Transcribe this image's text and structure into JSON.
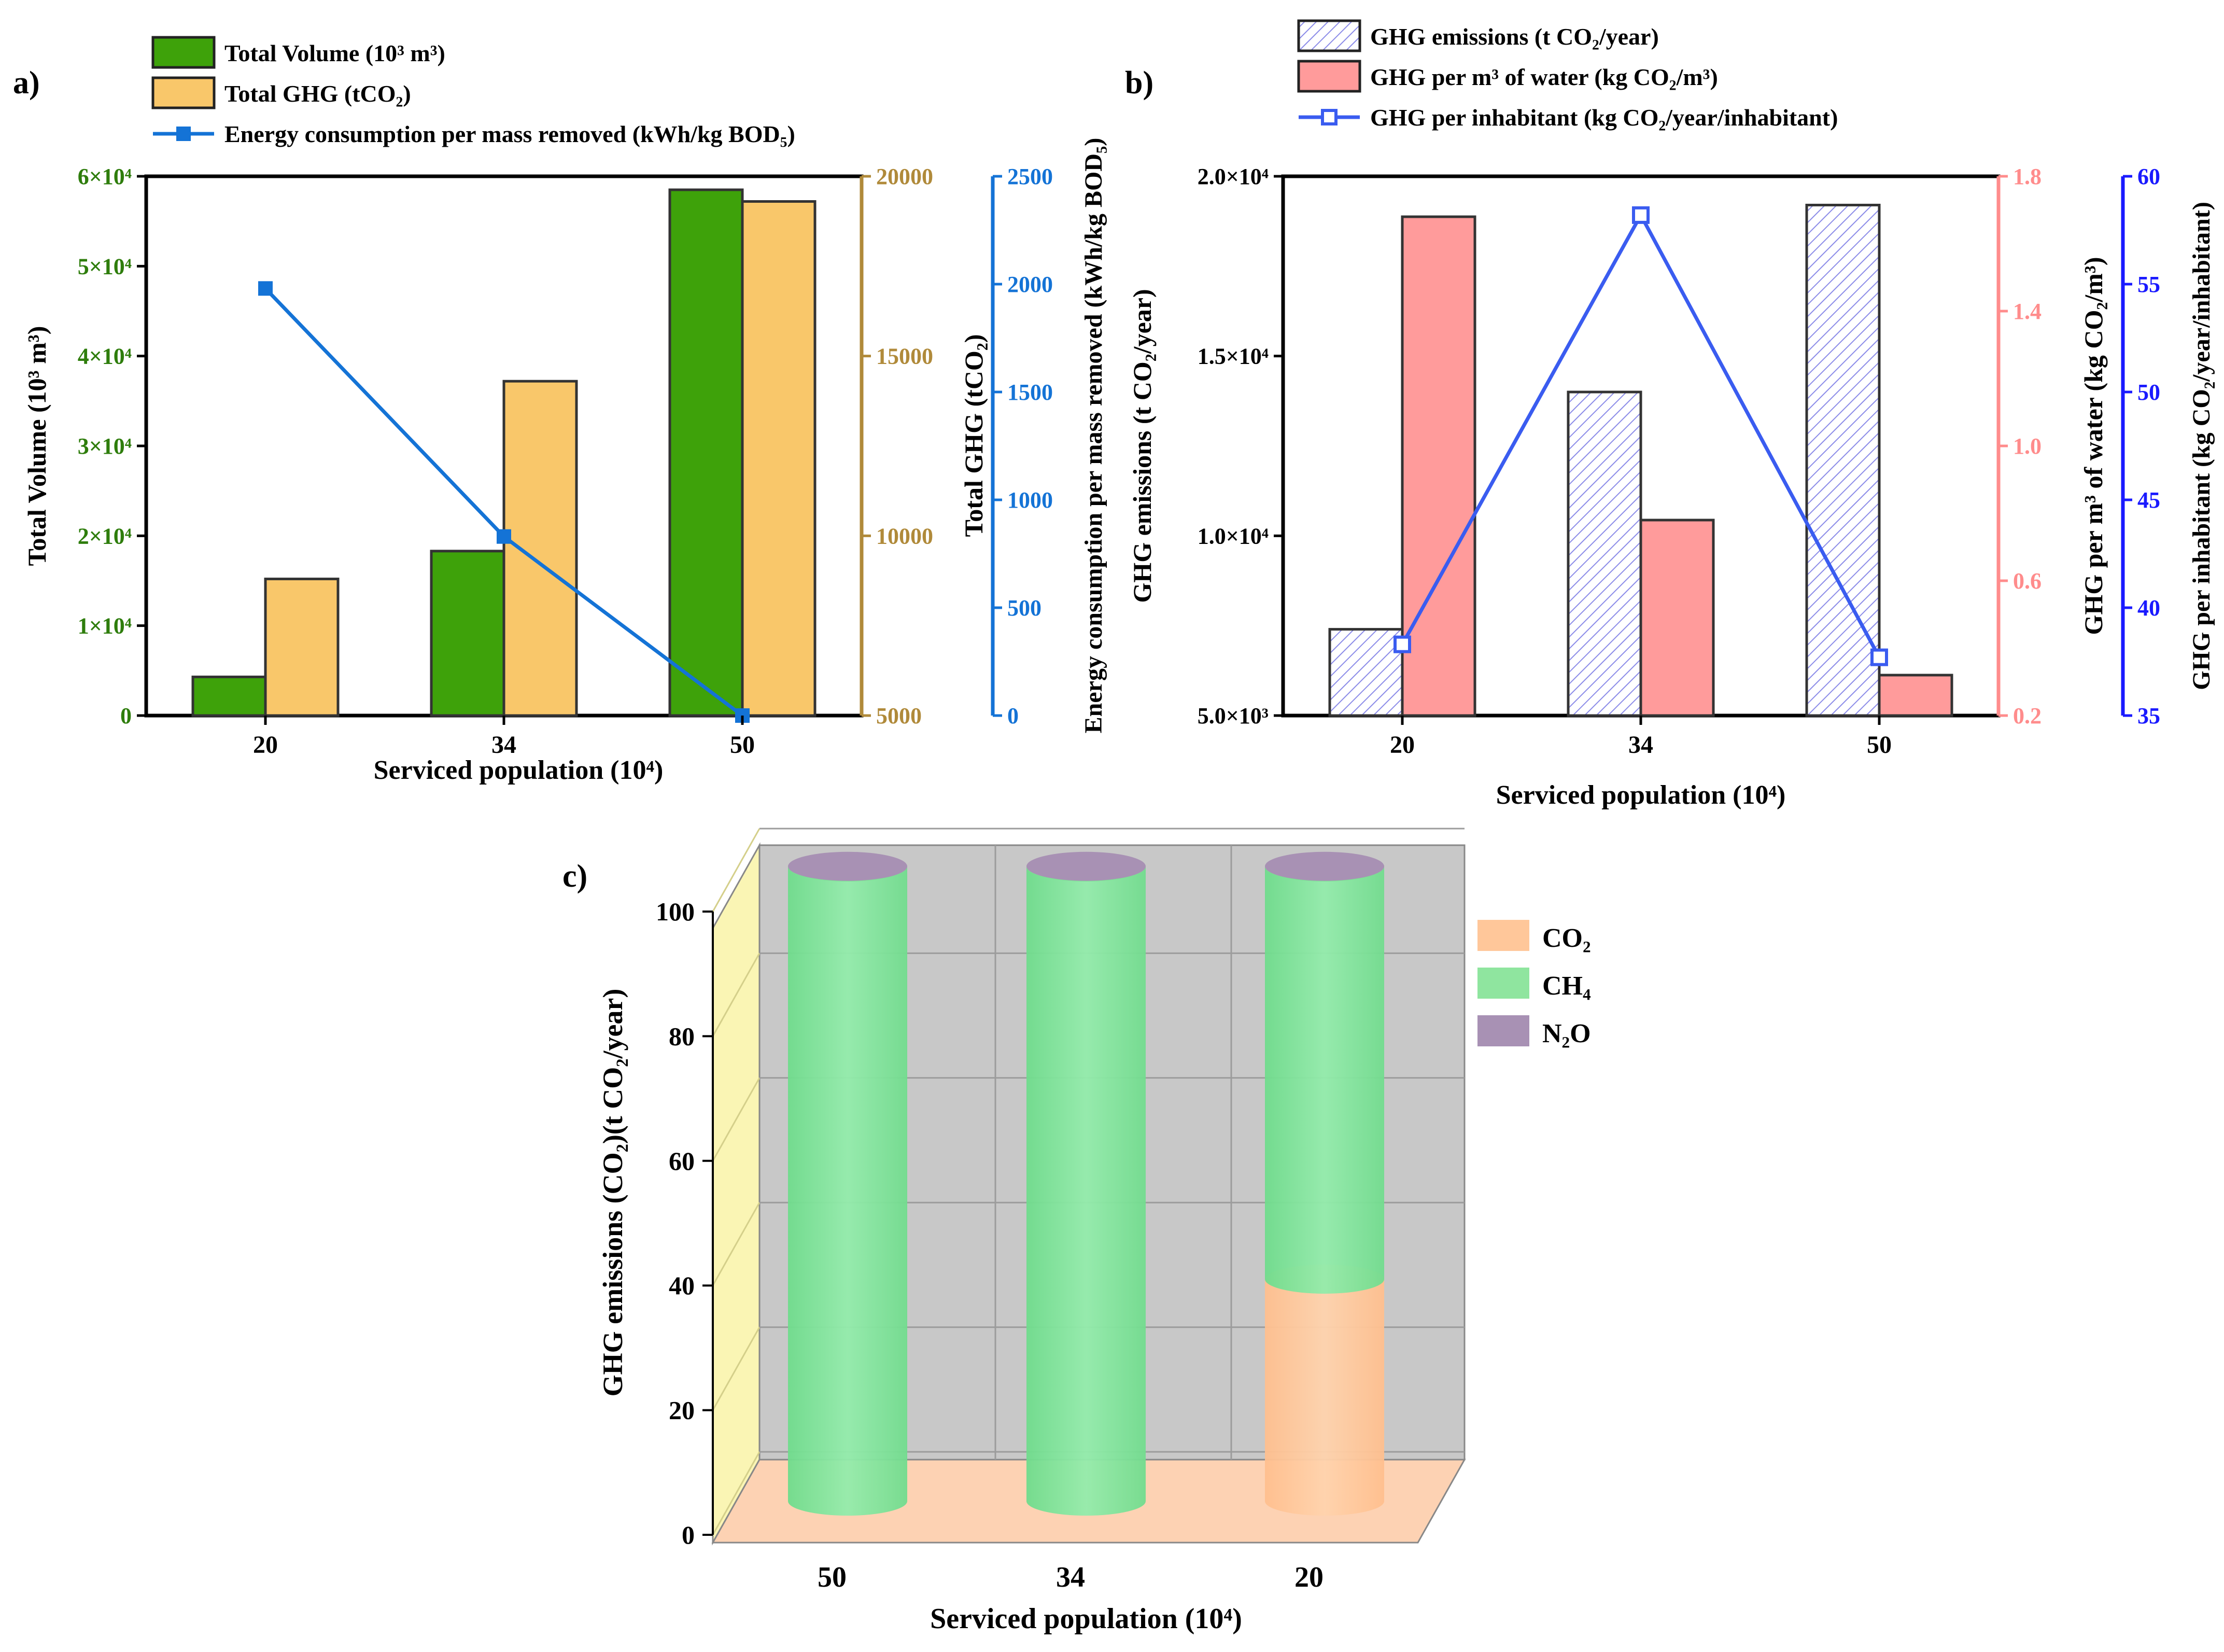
{
  "chart_data": [
    {
      "panel": "a)",
      "type": "bar",
      "xlabel": "Serviced population (10⁴)",
      "categories": [
        "20",
        "34",
        "50"
      ],
      "series": [
        {
          "name": "Total Volume (10³ m³)",
          "kind": "bar",
          "axis": "left",
          "color": "#3ea20a",
          "values": [
            4300,
            18300,
            58500
          ]
        },
        {
          "name": "Total GHG (tCO₂)",
          "kind": "bar",
          "axis": "right1",
          "color": "#f9c76a",
          "values": [
            8800,
            14300,
            19300
          ]
        },
        {
          "name": "Energy consumption per  mass removed (kWh/kg BOD₅)",
          "kind": "line",
          "axis": "right2",
          "color": "#1473d6",
          "values": [
            1980,
            830,
            0
          ]
        }
      ],
      "axes": {
        "left": {
          "label": "Total Volume (10³ m³)",
          "ylim": [
            0,
            60000
          ],
          "ticks": [
            "0",
            "1×10⁴",
            "2×10⁴",
            "3×10⁴",
            "4×10⁴",
            "5×10⁴",
            "6×10⁴"
          ],
          "color": "#2e7d0c"
        },
        "right1": {
          "label": "Total GHG (tCO₂)",
          "ylim": [
            5000,
            20000
          ],
          "ticks": [
            "5000",
            "10000",
            "15000",
            "20000"
          ],
          "color": "#b08a3a"
        },
        "right2": {
          "label": "Energy consumption per  mass removed (kWh/kg BOD₅)",
          "ylim": [
            0,
            2500
          ],
          "ticks": [
            "0",
            "500",
            "1000",
            "1500",
            "2000",
            "2500"
          ],
          "color": "#1473d6"
        }
      }
    },
    {
      "panel": "b)",
      "type": "bar",
      "xlabel": "Serviced population (10⁴)",
      "categories": [
        "20",
        "34",
        "50"
      ],
      "series": [
        {
          "name": "GHG emissions (t CO₂/year)",
          "kind": "bar",
          "axis": "left",
          "color": "#8c8ce8",
          "values": [
            7400,
            14000,
            19200
          ]
        },
        {
          "name": "GHG per m³ of water (kg CO₂/m³)",
          "kind": "bar",
          "axis": "right1",
          "color": "#ff9b9b",
          "values": [
            1.68,
            0.78,
            0.32
          ]
        },
        {
          "name": "GHG per inhabitant (kg CO₂/year/inhabitant)",
          "kind": "line",
          "axis": "right2",
          "color": "#3a5cf0",
          "values": [
            38.3,
            58.2,
            37.7
          ]
        }
      ],
      "axes": {
        "left": {
          "label": "GHG emissions (t CO₂/year)",
          "ylim": [
            5000,
            20000
          ],
          "ticks": [
            "5.0×10³",
            "1.0×10⁴",
            "1.5×10⁴",
            "2.0×10⁴"
          ],
          "color": "#000000"
        },
        "right1": {
          "label": "GHG per m³ of water (kg CO₂/m³)",
          "ylim": [
            0.2,
            1.8
          ],
          "ticks": [
            "0.2",
            "0.6",
            "1.0",
            "1.4",
            "1.8"
          ],
          "color": "#ff8c8c"
        },
        "right2": {
          "label": "GHG per inhabitant (kg CO₂/year/inhabitant)",
          "ylim": [
            35,
            60
          ],
          "ticks": [
            "35",
            "40",
            "45",
            "50",
            "55",
            "60"
          ],
          "color": "#1a1aff"
        }
      }
    },
    {
      "panel": "c)",
      "type": "bar",
      "stacked": true,
      "style": "3d-cylinder",
      "xlabel": "Serviced population (10⁴)",
      "ylabel": "GHG emissions (CO₂)(t CO₂/year)",
      "categories": [
        "50",
        "34",
        "20"
      ],
      "ylim": [
        0,
        100
      ],
      "yticks": [
        "0",
        "20",
        "40",
        "60",
        "80",
        "100"
      ],
      "series": [
        {
          "name": "CO₂",
          "color": "#ffc79a",
          "values": [
            0,
            0,
            35
          ]
        },
        {
          "name": "CH₄",
          "color": "#8fe59f",
          "values": [
            100,
            100,
            65
          ]
        },
        {
          "name": "N₂O",
          "color": "#a891b4",
          "values": [
            0.1,
            0.1,
            0.1
          ]
        }
      ]
    }
  ]
}
